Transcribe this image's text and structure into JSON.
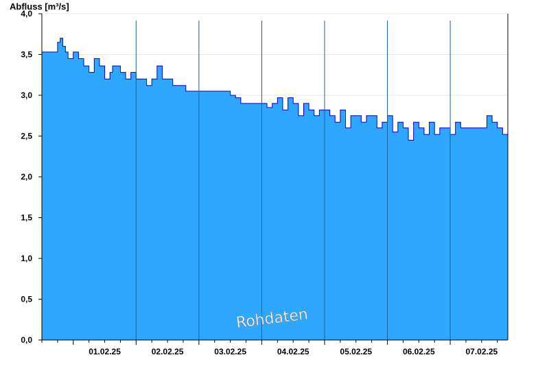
{
  "chart_data": {
    "type": "area",
    "ylabel": "Abfluss [m³/s]",
    "ylim": [
      0,
      4.0
    ],
    "yticks": [
      {
        "value": 0.0,
        "label": "0,0"
      },
      {
        "value": 0.5,
        "label": "0,5"
      },
      {
        "value": 1.0,
        "label": "1,0"
      },
      {
        "value": 1.5,
        "label": "1,5"
      },
      {
        "value": 2.0,
        "label": "2,0"
      },
      {
        "value": 2.5,
        "label": "2,5"
      },
      {
        "value": 3.0,
        "label": "3,0"
      },
      {
        "value": 3.5,
        "label": "3,5"
      },
      {
        "value": 4.0,
        "label": "4,0"
      }
    ],
    "xlim": [
      "2025-01-31 12:00",
      "2025-02-07 22:00"
    ],
    "xticks": [
      {
        "value": "2025-02-01 12:00",
        "label": "01.02.25"
      },
      {
        "value": "2025-02-02 12:00",
        "label": "02.02.25"
      },
      {
        "value": "2025-02-03 12:00",
        "label": "03.02.25"
      },
      {
        "value": "2025-02-04 12:00",
        "label": "04.02.25"
      },
      {
        "value": "2025-02-05 12:00",
        "label": "05.02.25"
      },
      {
        "value": "2025-02-06 12:00",
        "label": "06.02.25"
      },
      {
        "value": "2025-02-07 12:00",
        "label": "07.02.25"
      }
    ],
    "day_boundaries": [
      "2025-02-02 00:00",
      "2025-02-03 00:00",
      "2025-02-04 00:00",
      "2025-02-05 00:00",
      "2025-02-06 00:00",
      "2025-02-07 00:00"
    ],
    "grid": true,
    "watermark": "Rohdaten",
    "colors": {
      "fill": "#2ea8ff",
      "line": "#0000cc",
      "divider": "#1a5fa0",
      "grid": "#e6e6e6"
    },
    "series": [
      {
        "x": [
          "2025-01-31 12:00",
          "2025-01-31 16:00",
          "2025-01-31 18:00",
          "2025-01-31 19:00",
          "2025-01-31 20:00",
          "2025-01-31 21:00",
          "2025-01-31 22:00",
          "2025-02-01 00:00",
          "2025-02-01 02:00",
          "2025-02-01 04:00",
          "2025-02-01 06:00",
          "2025-02-01 08:00",
          "2025-02-01 10:00",
          "2025-02-01 12:00",
          "2025-02-01 14:00",
          "2025-02-01 15:00",
          "2025-02-01 16:00",
          "2025-02-01 18:00",
          "2025-02-01 20:00",
          "2025-02-01 21:00",
          "2025-02-01 22:00",
          "2025-02-02 00:00",
          "2025-02-02 02:00",
          "2025-02-02 04:00",
          "2025-02-02 06:00",
          "2025-02-02 08:00",
          "2025-02-02 10:00",
          "2025-02-02 12:00",
          "2025-02-02 14:00",
          "2025-02-02 16:00",
          "2025-02-02 18:00",
          "2025-02-02 19:00",
          "2025-02-02 20:00",
          "2025-02-02 22:00",
          "2025-02-03 00:00",
          "2025-02-03 02:00",
          "2025-02-03 04:00",
          "2025-02-03 06:00",
          "2025-02-03 08:00",
          "2025-02-03 10:00",
          "2025-02-03 12:00",
          "2025-02-03 14:00",
          "2025-02-03 16:00",
          "2025-02-03 18:00",
          "2025-02-03 20:00",
          "2025-02-03 22:00",
          "2025-02-04 00:00",
          "2025-02-04 02:00",
          "2025-02-04 04:00",
          "2025-02-04 06:00",
          "2025-02-04 08:00",
          "2025-02-04 10:00",
          "2025-02-04 12:00",
          "2025-02-04 14:00",
          "2025-02-04 16:00",
          "2025-02-04 18:00",
          "2025-02-04 20:00",
          "2025-02-04 22:00",
          "2025-02-05 00:00",
          "2025-02-05 02:00",
          "2025-02-05 04:00",
          "2025-02-05 06:00",
          "2025-02-05 08:00",
          "2025-02-05 10:00",
          "2025-02-05 12:00",
          "2025-02-05 14:00",
          "2025-02-05 16:00",
          "2025-02-05 18:00",
          "2025-02-05 20:00",
          "2025-02-05 22:00",
          "2025-02-06 00:00",
          "2025-02-06 02:00",
          "2025-02-06 04:00",
          "2025-02-06 06:00",
          "2025-02-06 08:00",
          "2025-02-06 10:00",
          "2025-02-06 12:00",
          "2025-02-06 14:00",
          "2025-02-06 16:00",
          "2025-02-06 18:00",
          "2025-02-06 20:00",
          "2025-02-06 22:00",
          "2025-02-07 00:00",
          "2025-02-07 02:00",
          "2025-02-07 04:00",
          "2025-02-07 06:00",
          "2025-02-07 08:00",
          "2025-02-07 10:00",
          "2025-02-07 12:00",
          "2025-02-07 14:00",
          "2025-02-07 16:00",
          "2025-02-07 18:00",
          "2025-02-07 20:00",
          "2025-02-07 22:00"
        ],
        "y": [
          3.53,
          3.53,
          3.65,
          3.7,
          3.6,
          3.53,
          3.45,
          3.53,
          3.45,
          3.36,
          3.28,
          3.45,
          3.36,
          3.2,
          3.28,
          3.36,
          3.36,
          3.28,
          3.2,
          3.2,
          3.28,
          3.2,
          3.2,
          3.12,
          3.2,
          3.36,
          3.2,
          3.2,
          3.12,
          3.12,
          3.12,
          3.05,
          3.05,
          3.05,
          3.05,
          3.05,
          3.05,
          3.05,
          3.05,
          3.05,
          3.0,
          2.97,
          2.9,
          2.9,
          2.9,
          2.9,
          2.9,
          2.85,
          2.9,
          2.97,
          2.82,
          2.97,
          2.9,
          2.75,
          2.9,
          2.82,
          2.75,
          2.82,
          2.82,
          2.75,
          2.67,
          2.82,
          2.6,
          2.75,
          2.75,
          2.67,
          2.75,
          2.75,
          2.6,
          2.67,
          2.75,
          2.55,
          2.67,
          2.6,
          2.45,
          2.67,
          2.6,
          2.52,
          2.67,
          2.52,
          2.6,
          2.6,
          2.52,
          2.67,
          2.6,
          2.6,
          2.6,
          2.6,
          2.6,
          2.75,
          2.67,
          2.6,
          2.52,
          2.45
        ]
      }
    ]
  }
}
